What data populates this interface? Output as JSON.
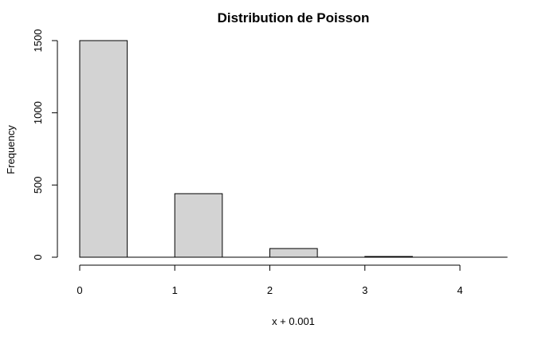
{
  "chart_data": {
    "type": "bar",
    "title": "Distribution de Poisson",
    "xlabel": "x + 0.001",
    "ylabel": "Frequency",
    "bins": [
      {
        "start": 0,
        "end": 0.5,
        "value": 1500
      },
      {
        "start": 1,
        "end": 1.5,
        "value": 440
      },
      {
        "start": 2,
        "end": 2.5,
        "value": 60
      },
      {
        "start": 3,
        "end": 3.5,
        "value": 5
      },
      {
        "start": 4,
        "end": 4.5,
        "value": 0
      }
    ],
    "xlim": [
      0,
      4.5
    ],
    "ylim": [
      0,
      1500
    ],
    "x_ticks": [
      "0",
      "1",
      "2",
      "3",
      "4"
    ],
    "y_ticks": [
      "0",
      "500",
      "1000",
      "1500"
    ],
    "bar_color": "#d3d3d3",
    "grid": false
  }
}
